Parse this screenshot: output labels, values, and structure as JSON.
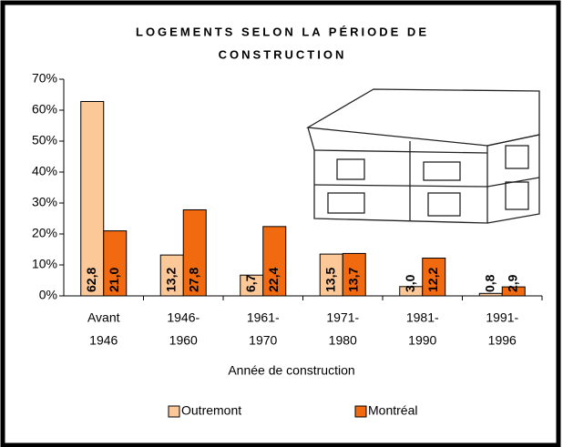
{
  "chart_data": {
    "type": "bar",
    "title": [
      "LOGEMENTS SELON LA PÉRIODE DE",
      "CONSTRUCTION"
    ],
    "x_label": "Année de construction",
    "categories": [
      [
        "Avant",
        "1946"
      ],
      [
        "1946-",
        "1960"
      ],
      [
        "1961-",
        "1970"
      ],
      [
        "1971-",
        "1980"
      ],
      [
        "1981-",
        "1990"
      ],
      [
        "1991-",
        "1996"
      ]
    ],
    "series": [
      {
        "name": "Outremont",
        "color": "#fcc898",
        "values": [
          62.8,
          13.2,
          6.7,
          13.5,
          3.0,
          0.8
        ],
        "value_labels": [
          "62,8",
          "13,2",
          "6,7",
          "13,5",
          "3,0",
          "0,8"
        ]
      },
      {
        "name": "Montréal",
        "color": "#f26a10",
        "values": [
          21.0,
          27.8,
          22.4,
          13.7,
          12.2,
          2.9
        ],
        "value_labels": [
          "21,0",
          "27,8",
          "22,4",
          "13,7",
          "12,2",
          "2,9"
        ]
      }
    ],
    "ylim": [
      0,
      70
    ],
    "yticks": [
      {
        "value": 0,
        "label": "0%"
      },
      {
        "value": 10,
        "label": "10%"
      },
      {
        "value": 20,
        "label": "20%"
      },
      {
        "value": 30,
        "label": "30%"
      },
      {
        "value": 40,
        "label": "40%"
      },
      {
        "value": 50,
        "label": "50%"
      },
      {
        "value": 60,
        "label": "60%"
      },
      {
        "value": 70,
        "label": "70%"
      }
    ],
    "legend": "bottom"
  }
}
